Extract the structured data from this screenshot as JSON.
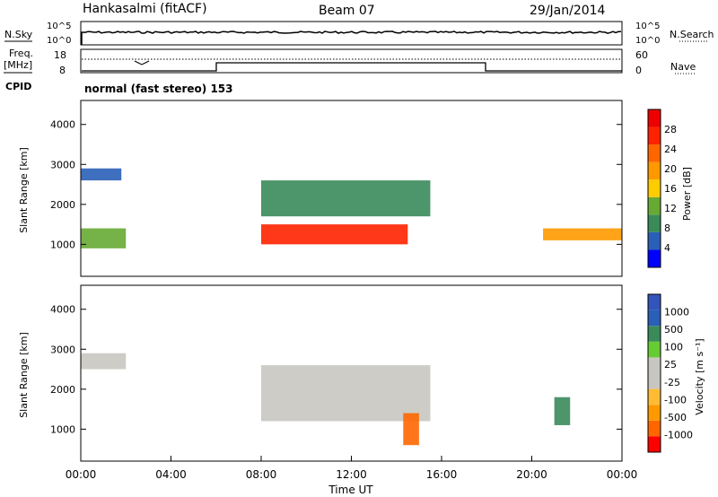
{
  "header": {
    "site": "Hankasalmi (fitACF)",
    "beam": "Beam 07",
    "date": "29/Jan/2014"
  },
  "strip": {
    "nsky_label": "N.Sky",
    "nsky_ticks": [
      "10^5",
      "10^0"
    ],
    "nsearch_label": "N.Search",
    "nsearch_ticks": [
      "10^5",
      "10^0"
    ],
    "freq_label_1": "Freq.",
    "freq_label_2": "[MHz]",
    "freq_ticks": [
      "18",
      "8"
    ],
    "nave_label": "Nave",
    "nave_ticks": [
      "60",
      "0"
    ],
    "cpid_label": "CPID",
    "cpid_value": "normal (fast stereo) 153"
  },
  "colors": {
    "power_scale": [
      "#0000ff",
      "#2a5fb8",
      "#3a8a5a",
      "#66aa33",
      "#ffcc00",
      "#ff9900",
      "#ff6600",
      "#ff2200",
      "#ee0000"
    ],
    "velocity_scale": [
      "#ff0000",
      "#ff6600",
      "#ff9900",
      "#ffbb33",
      "#c8c6c0",
      "#c8c6c0",
      "#66cc33",
      "#3a8a5a",
      "#2a5fb8",
      "#3355bb"
    ]
  },
  "chart_data": [
    {
      "type": "heatmap",
      "name": "power",
      "ylabel": "Slant Range [km]",
      "ylim": [
        200,
        4600
      ],
      "yticks": [
        "4000",
        "3000",
        "2000",
        "1000"
      ],
      "xlim": [
        0,
        24
      ],
      "colorbar_label": "Power [dB]",
      "colorbar_ticks": [
        "28",
        "24",
        "20",
        "16",
        "12",
        "8",
        "4"
      ],
      "features": [
        {
          "t0": 0.0,
          "t1": 2.0,
          "r0": 900,
          "r1": 1400,
          "level": 12
        },
        {
          "t0": 0.0,
          "t1": 1.8,
          "r0": 2600,
          "r1": 2900,
          "level": 8
        },
        {
          "t0": 8.0,
          "t1": 14.5,
          "r0": 1000,
          "r1": 1500,
          "level": 26
        },
        {
          "t0": 8.0,
          "t1": 15.5,
          "r0": 1700,
          "r1": 2600,
          "level": 10
        },
        {
          "t0": 20.5,
          "t1": 24.0,
          "r0": 1100,
          "r1": 1400,
          "level": 20
        }
      ]
    },
    {
      "type": "heatmap",
      "name": "velocity",
      "ylabel": "Slant Range [km]",
      "ylim": [
        200,
        4600
      ],
      "yticks": [
        "4000",
        "3000",
        "2000",
        "1000"
      ],
      "xlim": [
        0,
        24
      ],
      "xlabel": "Time UT",
      "xticks": [
        "00:00",
        "04:00",
        "08:00",
        "12:00",
        "16:00",
        "20:00",
        "00:00"
      ],
      "colorbar_label": "Velocity [m s⁻¹]",
      "colorbar_ticks": [
        "1000",
        "500",
        "100",
        "25",
        "-25",
        "-100",
        "-500",
        "-1000"
      ],
      "features": [
        {
          "t0": 0.0,
          "t1": 2.0,
          "r0": 2500,
          "r1": 2900,
          "level": 0
        },
        {
          "t0": 8.0,
          "t1": 15.5,
          "r0": 1200,
          "r1": 2600,
          "level": 0
        },
        {
          "t0": 14.3,
          "t1": 15.0,
          "r0": 600,
          "r1": 1400,
          "level": -300
        },
        {
          "t0": 21.0,
          "t1": 21.7,
          "r0": 1100,
          "r1": 1800,
          "level": 500
        }
      ]
    }
  ]
}
